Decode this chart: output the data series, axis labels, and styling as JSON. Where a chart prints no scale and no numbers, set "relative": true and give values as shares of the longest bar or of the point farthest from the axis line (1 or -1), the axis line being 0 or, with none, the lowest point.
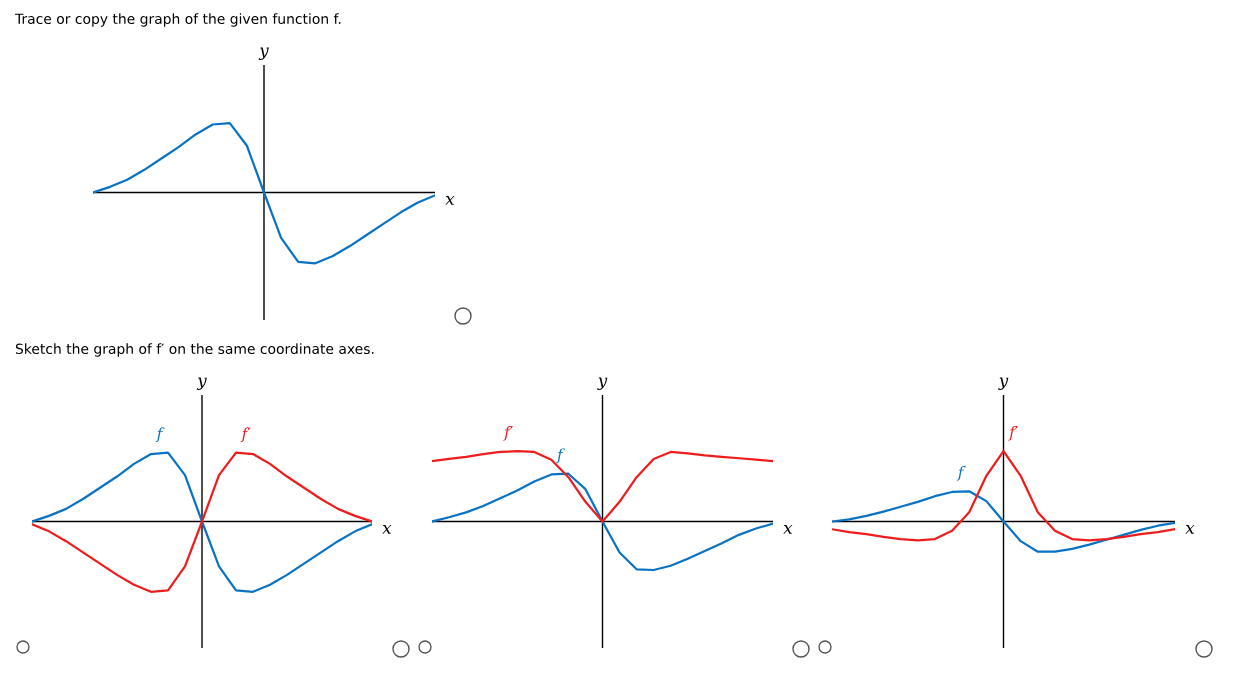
{
  "chart_data": [
    {
      "type": "line",
      "relative": true,
      "title": "Trace or copy the graph of the given function f.",
      "xlabel": "x",
      "ylabel": "y",
      "marker": "none",
      "line_style": "solid",
      "categories": [
        null,
        null,
        null,
        null,
        null,
        null,
        null,
        null,
        null,
        null,
        null,
        null,
        null,
        null,
        null,
        null,
        null,
        null,
        null,
        null,
        null
      ],
      "series": [
        {
          "color": "#0a72c4",
          "values": [
            0,
            0.08,
            0.18,
            0.32,
            0.48,
            0.64,
            0.82,
            0.96,
            0.98,
            0.66,
            0,
            -0.64,
            -0.98,
            -1,
            -0.9,
            -0.76,
            -0.6,
            -0.44,
            -0.28,
            -0.14,
            -0.04
          ]
        }
      ]
    },
    {
      "type": "line",
      "relative": true,
      "title": "Sketch the graph of f′ on the same coordinate axes.",
      "xlabel": "x",
      "ylabel": "y",
      "marker": "none",
      "line_style": "solid",
      "categories": [
        null,
        null,
        null,
        null,
        null,
        null,
        null,
        null,
        null,
        null,
        null,
        null,
        null,
        null,
        null,
        null,
        null,
        null,
        null,
        null,
        null
      ],
      "series": [
        {
          "name": "f",
          "color": "#0a72c4",
          "values": [
            0,
            0.08,
            0.18,
            0.32,
            0.48,
            0.64,
            0.82,
            0.96,
            0.98,
            0.66,
            0,
            -0.64,
            -0.98,
            -1,
            -0.9,
            -0.76,
            -0.6,
            -0.44,
            -0.28,
            -0.14,
            -0.04
          ]
        },
        {
          "name": "f′",
          "color": "#ee1c1c",
          "values": [
            -0.04,
            -0.14,
            -0.28,
            -0.44,
            -0.6,
            -0.76,
            -0.9,
            -1,
            -0.98,
            -0.64,
            0,
            0.66,
            0.98,
            0.96,
            0.82,
            0.64,
            0.48,
            0.32,
            0.18,
            0.08,
            0
          ]
        }
      ]
    },
    {
      "type": "line",
      "relative": true,
      "xlabel": "x",
      "ylabel": "y",
      "marker": "none",
      "line_style": "solid",
      "categories": [
        null,
        null,
        null,
        null,
        null,
        null,
        null,
        null,
        null,
        null,
        null,
        null,
        null,
        null,
        null,
        null,
        null,
        null,
        null,
        null,
        null
      ],
      "series": [
        {
          "name": "f",
          "color": "#0a72c4",
          "values": [
            0,
            0.06,
            0.13,
            0.22,
            0.33,
            0.44,
            0.57,
            0.67,
            0.68,
            0.46,
            0,
            -0.44,
            -0.68,
            -0.69,
            -0.63,
            -0.53,
            -0.42,
            -0.31,
            -0.19,
            -0.1,
            -0.03
          ]
        },
        {
          "name": "f′",
          "color": "#ee1c1c",
          "values": [
            0.86,
            0.89,
            0.92,
            0.96,
            0.99,
            1,
            0.99,
            0.88,
            0.63,
            0.28,
            0,
            0.28,
            0.63,
            0.89,
            0.99,
            0.97,
            0.94,
            0.92,
            0.9,
            0.88,
            0.86
          ]
        }
      ]
    },
    {
      "type": "line",
      "relative": true,
      "xlabel": "x",
      "ylabel": "y",
      "marker": "none",
      "line_style": "solid",
      "categories": [
        null,
        null,
        null,
        null,
        null,
        null,
        null,
        null,
        null,
        null,
        null,
        null,
        null,
        null,
        null,
        null,
        null,
        null,
        null,
        null,
        null
      ],
      "series": [
        {
          "name": "f",
          "color": "#0a72c4",
          "values": [
            0,
            0.03,
            0.08,
            0.14,
            0.21,
            0.28,
            0.36,
            0.42,
            0.43,
            0.29,
            0,
            -0.28,
            -0.43,
            -0.43,
            -0.39,
            -0.33,
            -0.26,
            -0.19,
            -0.12,
            -0.06,
            -0.02
          ]
        },
        {
          "name": "f′",
          "color": "#ee1c1c",
          "values": [
            -0.11,
            -0.15,
            -0.18,
            -0.22,
            -0.25,
            -0.27,
            -0.25,
            -0.13,
            0.13,
            0.65,
            1,
            0.65,
            0.13,
            -0.13,
            -0.25,
            -0.27,
            -0.25,
            -0.22,
            -0.18,
            -0.15,
            -0.11
          ]
        }
      ]
    }
  ]
}
